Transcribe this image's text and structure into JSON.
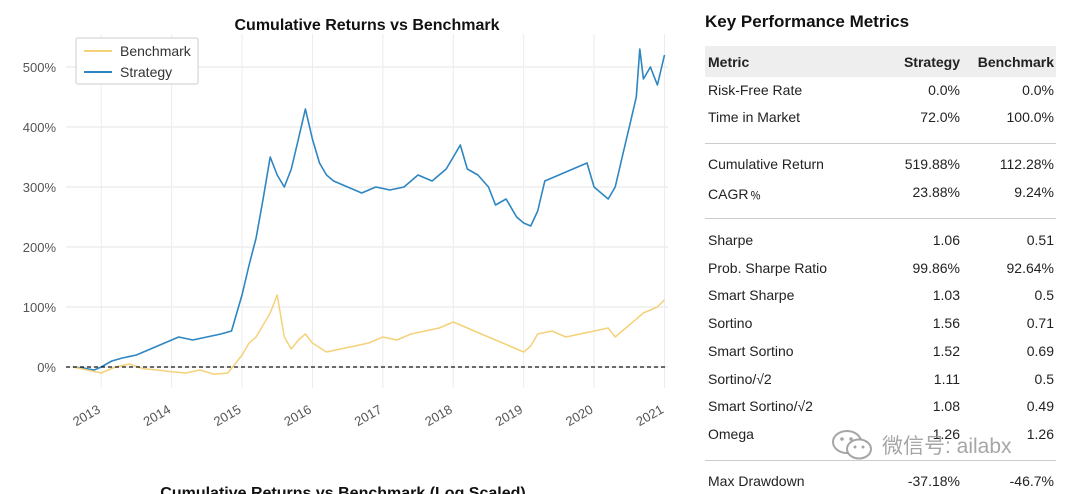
{
  "chart_data": {
    "type": "line",
    "title": "Cumulative Returns vs Benchmark",
    "second_title": "Cumulative Returns vs Benchmark (Log Scaled)",
    "xlabel": "",
    "ylabel": "",
    "x_ticks": [
      "2013",
      "2014",
      "2015",
      "2016",
      "2017",
      "2018",
      "2019",
      "2020",
      "2021"
    ],
    "y_ticks": [
      "0%",
      "100%",
      "200%",
      "300%",
      "400%",
      "500%"
    ],
    "xlim": [
      2012.5,
      2021.05
    ],
    "ylim": [
      -35,
      555
    ],
    "legend": {
      "position": "top-left",
      "entries": [
        "Benchmark",
        "Strategy"
      ]
    },
    "grid": true,
    "baseline": {
      "value": 0,
      "style": "dashed"
    },
    "series": [
      {
        "name": "Strategy",
        "color": "#2e86c1",
        "x": [
          2012.6,
          2012.75,
          2012.9,
          2013.0,
          2013.15,
          2013.3,
          2013.5,
          2013.7,
          2013.9,
          2014.1,
          2014.3,
          2014.5,
          2014.7,
          2014.85,
          2015.0,
          2015.1,
          2015.2,
          2015.3,
          2015.4,
          2015.5,
          2015.6,
          2015.7,
          2015.8,
          2015.9,
          2016.0,
          2016.1,
          2016.2,
          2016.3,
          2016.5,
          2016.7,
          2016.9,
          2017.1,
          2017.3,
          2017.5,
          2017.7,
          2017.9,
          2018.0,
          2018.1,
          2018.2,
          2018.35,
          2018.5,
          2018.6,
          2018.75,
          2018.9,
          2019.0,
          2019.1,
          2019.2,
          2019.3,
          2019.5,
          2019.7,
          2019.9,
          2020.0,
          2020.1,
          2020.2,
          2020.3,
          2020.4,
          2020.5,
          2020.6,
          2020.65,
          2020.7,
          2020.8,
          2020.9,
          2021.0
        ],
        "y": [
          0,
          -2,
          -5,
          0,
          10,
          15,
          20,
          30,
          40,
          50,
          45,
          50,
          55,
          60,
          120,
          170,
          215,
          280,
          350,
          320,
          300,
          330,
          380,
          430,
          380,
          340,
          320,
          310,
          300,
          290,
          300,
          295,
          300,
          320,
          310,
          330,
          350,
          370,
          330,
          320,
          300,
          270,
          280,
          250,
          240,
          235,
          260,
          310,
          320,
          330,
          340,
          300,
          290,
          280,
          300,
          350,
          400,
          450,
          530,
          480,
          500,
          470,
          520
        ]
      },
      {
        "name": "Benchmark",
        "color": "#f4d27a",
        "x": [
          2012.6,
          2012.8,
          2013.0,
          2013.2,
          2013.4,
          2013.6,
          2013.8,
          2014.0,
          2014.2,
          2014.4,
          2014.6,
          2014.8,
          2015.0,
          2015.1,
          2015.2,
          2015.3,
          2015.4,
          2015.5,
          2015.6,
          2015.7,
          2015.8,
          2015.9,
          2016.0,
          2016.2,
          2016.4,
          2016.6,
          2016.8,
          2017.0,
          2017.2,
          2017.4,
          2017.6,
          2017.8,
          2018.0,
          2018.1,
          2018.2,
          2018.4,
          2018.6,
          2018.8,
          2019.0,
          2019.1,
          2019.2,
          2019.4,
          2019.6,
          2019.8,
          2020.0,
          2020.2,
          2020.3,
          2020.5,
          2020.7,
          2020.9,
          2021.0
        ],
        "y": [
          0,
          -5,
          -10,
          0,
          5,
          -3,
          -5,
          -8,
          -10,
          -5,
          -12,
          -10,
          20,
          40,
          50,
          70,
          90,
          120,
          50,
          30,
          45,
          55,
          40,
          25,
          30,
          35,
          40,
          50,
          45,
          55,
          60,
          65,
          75,
          70,
          65,
          55,
          45,
          35,
          25,
          35,
          55,
          60,
          50,
          55,
          60,
          65,
          50,
          70,
          90,
          100,
          112
        ]
      }
    ]
  },
  "metrics": {
    "title": "Key Performance Metrics",
    "headers": {
      "metric": "Metric",
      "strategy": "Strategy",
      "benchmark": "Benchmark"
    },
    "rows": [
      {
        "label": "Risk-Free Rate",
        "strategy": "0.0%",
        "benchmark": "0.0%"
      },
      {
        "label": "Time in Market",
        "strategy": "72.0%",
        "benchmark": "100.0%"
      },
      {
        "label": "Cumulative Return",
        "strategy": "519.88%",
        "benchmark": "112.28%"
      },
      {
        "label": "CAGR﹪",
        "strategy": "23.88%",
        "benchmark": "9.24%"
      },
      {
        "label": "Sharpe",
        "strategy": "1.06",
        "benchmark": "0.51"
      },
      {
        "label": "Prob. Sharpe Ratio",
        "strategy": "99.86%",
        "benchmark": "92.64%"
      },
      {
        "label": "Smart Sharpe",
        "strategy": "1.03",
        "benchmark": "0.5"
      },
      {
        "label": "Sortino",
        "strategy": "1.56",
        "benchmark": "0.71"
      },
      {
        "label": "Smart Sortino",
        "strategy": "1.52",
        "benchmark": "0.69"
      },
      {
        "label": "Sortino/√2",
        "strategy": "1.11",
        "benchmark": "0.5"
      },
      {
        "label": "Smart Sortino/√2",
        "strategy": "1.08",
        "benchmark": "0.49"
      },
      {
        "label": "Omega",
        "strategy": "1.26",
        "benchmark": "1.26"
      },
      {
        "label": "Max Drawdown",
        "strategy": "-37.18%",
        "benchmark": "-46.7%"
      }
    ]
  },
  "watermark": {
    "text": "微信号: ailabx",
    "icon": "wechat-icon"
  }
}
